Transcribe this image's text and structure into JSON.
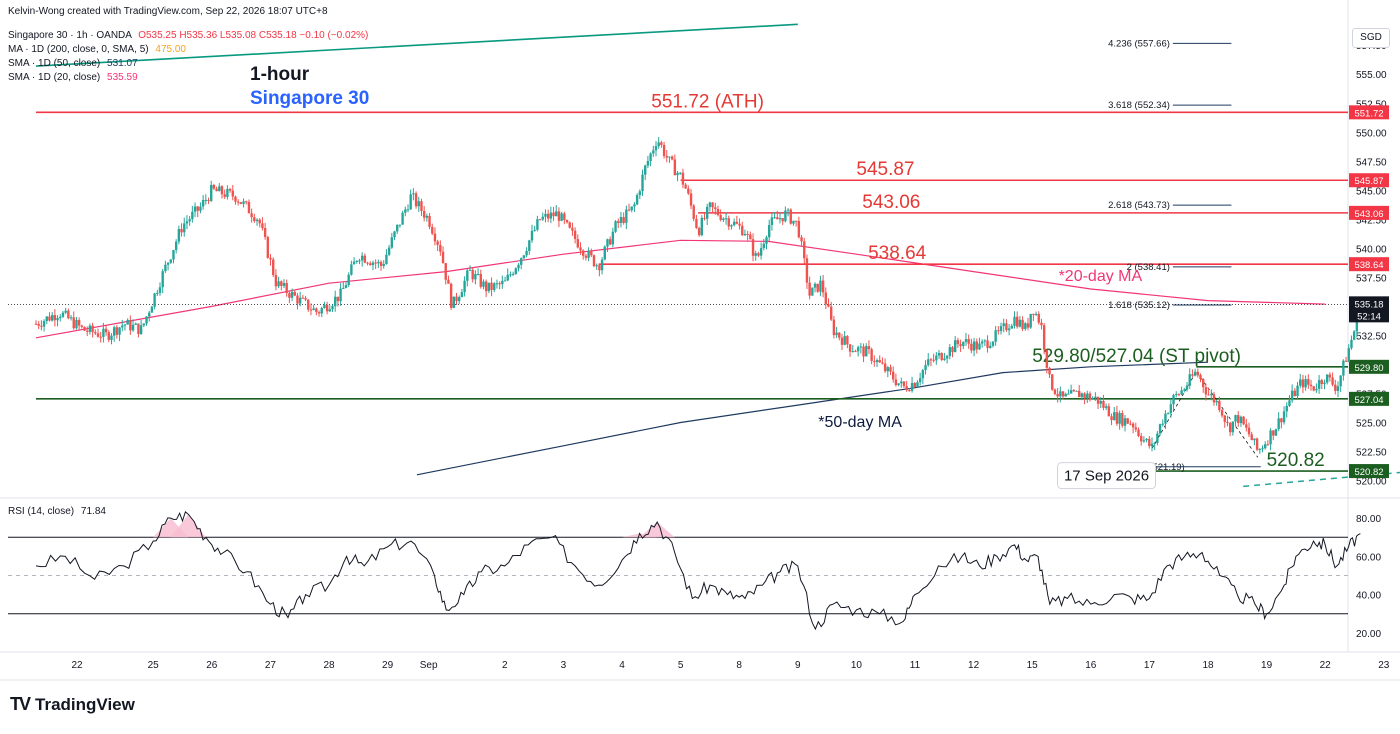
{
  "header": {
    "credit": "Kelvin-Wong created with TradingView.com, Sep 22, 2026 18:07 UTC+8",
    "symbol_line": "Singapore 30 · 1h · OANDA",
    "ohlc": "O535.25 H535.36 L535.08 C535.18 −0.10 (−0.02%)",
    "ma200_label": "MA · 1D (200, close, 0, SMA, 5)",
    "ma200_value": "475.00",
    "sma50_label": "SMA · 1D (50, close)",
    "sma50_value": "531.07",
    "sma20_label": "SMA · 1D (20, close)",
    "sma20_value": "535.59",
    "rsi_label": "RSI (14, close)",
    "rsi_value": "71.84"
  },
  "titles": {
    "timeframe": "1-hour",
    "instrument": "Singapore 30"
  },
  "currency": "SGD",
  "brand": "TradingView",
  "colors": {
    "up": "#26a69a",
    "down": "#ef5350",
    "resistance": "#f23645",
    "support": "#1b5e20",
    "sma20": "#f23675",
    "sma50": "#1e3a5f",
    "ma200": "#089981",
    "rsi_line": "#131722",
    "label_red": "#e53935",
    "label_green": "#1b5e20",
    "label_navy": "#0d1b3e",
    "title_blue": "#2962ff"
  },
  "chart_data": [
    {
      "type": "candlestick",
      "title": "Singapore 30 · 1h · OANDA",
      "ylim": [
        518.5,
        559.5
      ],
      "yticks": [
        520.0,
        522.5,
        525.0,
        527.5,
        530.0,
        532.5,
        535.0,
        537.5,
        540.0,
        542.5,
        545.0,
        547.5,
        550.0,
        552.5,
        555.0,
        557.5
      ],
      "x_labels": [
        {
          "label": "22",
          "at": 0.7
        },
        {
          "label": "25",
          "at": 2.0
        },
        {
          "label": "26",
          "at": 3.0
        },
        {
          "label": "27",
          "at": 4.0
        },
        {
          "label": "28",
          "at": 5.0
        },
        {
          "label": "29",
          "at": 6.0
        },
        {
          "label": "Sep",
          "at": 6.7
        },
        {
          "label": "2",
          "at": 8.0
        },
        {
          "label": "3",
          "at": 9.0
        },
        {
          "label": "4",
          "at": 10.0
        },
        {
          "label": "5",
          "at": 11.0
        },
        {
          "label": "8",
          "at": 12.0
        },
        {
          "label": "9",
          "at": 13.0
        },
        {
          "label": "10",
          "at": 14.0
        },
        {
          "label": "11",
          "at": 15.0
        },
        {
          "label": "12",
          "at": 16.0
        },
        {
          "label": "15",
          "at": 17.0
        },
        {
          "label": "16",
          "at": 18.0
        },
        {
          "label": "17",
          "at": 19.0
        },
        {
          "label": "18",
          "at": 20.0
        },
        {
          "label": "19",
          "at": 21.0
        },
        {
          "label": "22",
          "at": 22.0
        },
        {
          "label": "23",
          "at": 23.0
        }
      ],
      "close_path": [
        [
          0,
          533.5
        ],
        [
          0.4,
          534.5
        ],
        [
          0.8,
          533.0
        ],
        [
          1.2,
          532.5
        ],
        [
          1.5,
          533.5
        ],
        [
          1.8,
          533.0
        ],
        [
          2.1,
          537.0
        ],
        [
          2.5,
          542.0
        ],
        [
          2.8,
          543.5
        ],
        [
          3.0,
          545.0
        ],
        [
          3.4,
          544.5
        ],
        [
          3.8,
          542.5
        ],
        [
          4.1,
          537.0
        ],
        [
          4.5,
          535.5
        ],
        [
          4.8,
          534.5
        ],
        [
          5.2,
          536.0
        ],
        [
          5.5,
          539.5
        ],
        [
          5.9,
          538.5
        ],
        [
          6.1,
          541.0
        ],
        [
          6.4,
          544.5
        ],
        [
          6.7,
          542.5
        ],
        [
          6.9,
          540.0
        ],
        [
          7.1,
          535.0
        ],
        [
          7.4,
          538.0
        ],
        [
          7.7,
          536.5
        ],
        [
          8.0,
          537.0
        ],
        [
          8.3,
          539.5
        ],
        [
          8.6,
          542.5
        ],
        [
          8.9,
          543.0
        ],
        [
          9.1,
          541.5
        ],
        [
          9.4,
          539.5
        ],
        [
          9.6,
          538.5
        ],
        [
          9.9,
          542.0
        ],
        [
          10.2,
          543.5
        ],
        [
          10.4,
          547.0
        ],
        [
          10.6,
          549.5
        ],
        [
          10.8,
          547.5
        ],
        [
          11.0,
          546.2
        ],
        [
          11.1,
          545.0
        ],
        [
          11.3,
          541.5
        ],
        [
          11.5,
          543.5
        ],
        [
          11.8,
          542.5
        ],
        [
          12.1,
          541.5
        ],
        [
          12.3,
          539.0
        ],
        [
          12.5,
          542.0
        ],
        [
          12.8,
          543.0
        ],
        [
          13.0,
          542.0
        ],
        [
          13.2,
          536.0
        ],
        [
          13.4,
          537.0
        ],
        [
          13.6,
          533.0
        ],
        [
          13.9,
          531.5
        ],
        [
          14.2,
          531.0
        ],
        [
          14.5,
          529.5
        ],
        [
          14.8,
          528.0
        ],
        [
          15.0,
          528.5
        ],
        [
          15.2,
          530.0
        ],
        [
          15.5,
          531.0
        ],
        [
          15.8,
          532.0
        ],
        [
          16.1,
          531.5
        ],
        [
          16.4,
          532.5
        ],
        [
          16.7,
          534.0
        ],
        [
          16.9,
          533.0
        ],
        [
          17.0,
          535.0
        ],
        [
          17.15,
          533.5
        ],
        [
          17.3,
          528.5
        ],
        [
          17.5,
          527.0
        ],
        [
          17.8,
          527.5
        ],
        [
          18.1,
          527.0
        ],
        [
          18.4,
          525.5
        ],
        [
          18.7,
          525.0
        ],
        [
          18.9,
          523.5
        ],
        [
          19.05,
          522.8
        ],
        [
          19.2,
          525.0
        ],
        [
          19.4,
          527.0
        ],
        [
          19.6,
          528.0
        ],
        [
          19.8,
          529.4
        ],
        [
          20.0,
          527.5
        ],
        [
          20.2,
          526.5
        ],
        [
          20.35,
          524.5
        ],
        [
          20.5,
          525.5
        ],
        [
          20.7,
          524.0
        ],
        [
          20.85,
          522.5
        ],
        [
          21.0,
          523.5
        ],
        [
          21.2,
          525.0
        ],
        [
          21.4,
          527.0
        ],
        [
          21.6,
          528.5
        ],
        [
          21.8,
          528.0
        ],
        [
          22.0,
          529.0
        ],
        [
          22.2,
          528.0
        ],
        [
          22.35,
          530.5
        ],
        [
          22.5,
          533.0
        ],
        [
          22.6,
          535.18
        ]
      ],
      "levels": [
        {
          "value": 551.72,
          "label": "551.72 (ATH)",
          "tag": "551.72",
          "kind": "resistance"
        },
        {
          "value": 545.87,
          "label": "545.87",
          "tag": "545.87",
          "kind": "resistance"
        },
        {
          "value": 543.06,
          "label": "543.06",
          "tag": "543.06",
          "kind": "resistance"
        },
        {
          "value": 538.64,
          "label": "538.64",
          "tag": "538.64",
          "kind": "resistance"
        },
        {
          "value": 529.8,
          "label": "529.80/527.04 (ST pivot)",
          "tag": "529.80",
          "kind": "support"
        },
        {
          "value": 527.04,
          "label": "",
          "tag": "527.04",
          "kind": "support"
        },
        {
          "value": 520.82,
          "label": "520.82",
          "tag": "520.82",
          "kind": "support"
        }
      ],
      "last_price": {
        "value": 535.18,
        "countdown": "52:14"
      },
      "fibonacci": [
        {
          "ratio": "4.236",
          "value": 557.66,
          "text": "4.236 (557.66)"
        },
        {
          "ratio": "3.618",
          "value": 552.34,
          "text": "3.618 (552.34)"
        },
        {
          "ratio": "2.618",
          "value": 543.73,
          "text": "2.618 (543.73)"
        },
        {
          "ratio": "2",
          "value": 538.41,
          "text": "2 (538.41)"
        },
        {
          "ratio": "1.618",
          "value": 535.12,
          "text": "1.618 (535.12)"
        },
        {
          "ratio": "0",
          "value": 521.19,
          "text": "0 (521.19)"
        }
      ],
      "sma20": [
        [
          0,
          532.3
        ],
        [
          3,
          535.0
        ],
        [
          5,
          537.0
        ],
        [
          7,
          538.0
        ],
        [
          9,
          539.5
        ],
        [
          11,
          540.7
        ],
        [
          12.5,
          540.6
        ],
        [
          14,
          539.5
        ],
        [
          16,
          538.0
        ],
        [
          18,
          536.5
        ],
        [
          20,
          535.5
        ],
        [
          22,
          535.2
        ]
      ],
      "sma50": [
        [
          6.5,
          520.5
        ],
        [
          9,
          523.0
        ],
        [
          11,
          525.0
        ],
        [
          13,
          526.5
        ],
        [
          15,
          528.0
        ],
        [
          16.5,
          529.3
        ],
        [
          18,
          529.8
        ],
        [
          20,
          530.2
        ]
      ],
      "ma200": [
        [
          0,
          555.7
        ],
        [
          13,
          559.3
        ]
      ],
      "dashed_trend": [
        [
          20.6,
          519.5
        ],
        [
          23.5,
          520.8
        ]
      ],
      "annotations": [
        {
          "text": "*20-day MA",
          "x": 17.45,
          "y": 537.2,
          "color": "sma20"
        },
        {
          "text": "*50-day MA",
          "x": 13.35,
          "y": 524.6,
          "color": "label_navy"
        },
        {
          "text": "17 Sep 2026",
          "x": 18.2,
          "y": 520.6,
          "boxed": true
        }
      ]
    },
    {
      "type": "line",
      "title": "RSI (14, close)",
      "ylim": [
        10,
        90
      ],
      "yticks": [
        20,
        40,
        60,
        80
      ],
      "bands": [
        30,
        50,
        70
      ],
      "points": [
        [
          0,
          55
        ],
        [
          0.5,
          60
        ],
        [
          1.0,
          48
        ],
        [
          1.5,
          55
        ],
        [
          2.0,
          68
        ],
        [
          2.3,
          80
        ],
        [
          2.6,
          82
        ],
        [
          2.9,
          70
        ],
        [
          3.2,
          62
        ],
        [
          3.6,
          52
        ],
        [
          4.0,
          35
        ],
        [
          4.3,
          28
        ],
        [
          4.6,
          40
        ],
        [
          5.0,
          45
        ],
        [
          5.3,
          60
        ],
        [
          5.6,
          55
        ],
        [
          6.0,
          65
        ],
        [
          6.4,
          68
        ],
        [
          6.8,
          50
        ],
        [
          7.0,
          32
        ],
        [
          7.3,
          40
        ],
        [
          7.6,
          52
        ],
        [
          8.0,
          55
        ],
        [
          8.4,
          66
        ],
        [
          8.8,
          70
        ],
        [
          9.2,
          55
        ],
        [
          9.6,
          45
        ],
        [
          10.0,
          58
        ],
        [
          10.3,
          72
        ],
        [
          10.6,
          78
        ],
        [
          10.9,
          62
        ],
        [
          11.2,
          38
        ],
        [
          11.5,
          45
        ],
        [
          11.8,
          40
        ],
        [
          12.1,
          38
        ],
        [
          12.4,
          45
        ],
        [
          12.7,
          52
        ],
        [
          13.0,
          55
        ],
        [
          13.3,
          22
        ],
        [
          13.6,
          35
        ],
        [
          14.0,
          32
        ],
        [
          14.4,
          30
        ],
        [
          14.8,
          26
        ],
        [
          15.0,
          40
        ],
        [
          15.4,
          55
        ],
        [
          15.8,
          60
        ],
        [
          16.1,
          55
        ],
        [
          16.4,
          60
        ],
        [
          16.7,
          66
        ],
        [
          16.9,
          58
        ],
        [
          17.1,
          60
        ],
        [
          17.3,
          35
        ],
        [
          17.6,
          38
        ],
        [
          18.0,
          35
        ],
        [
          18.4,
          40
        ],
        [
          18.7,
          38
        ],
        [
          19.0,
          38
        ],
        [
          19.3,
          55
        ],
        [
          19.6,
          60
        ],
        [
          19.9,
          62
        ],
        [
          20.2,
          50
        ],
        [
          20.5,
          40
        ],
        [
          20.8,
          35
        ],
        [
          21.0,
          30
        ],
        [
          21.3,
          45
        ],
        [
          21.5,
          60
        ],
        [
          21.8,
          68
        ],
        [
          22.0,
          66
        ],
        [
          22.2,
          55
        ],
        [
          22.4,
          65
        ],
        [
          22.6,
          71.84
        ]
      ]
    }
  ]
}
